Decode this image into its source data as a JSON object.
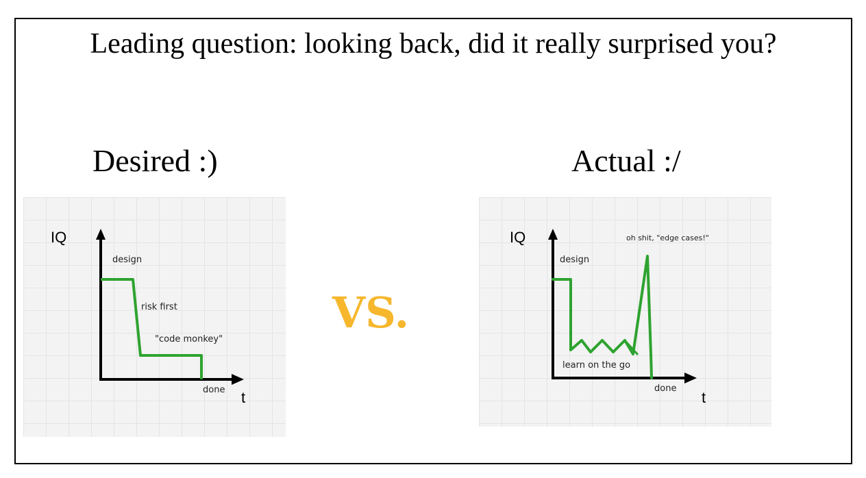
{
  "title": "Leading question: looking back, did it really surprised you?",
  "vs_label": "VS.",
  "vs_color": "#f6b72d",
  "line_color": "#2ea330",
  "desired": {
    "heading": "Desired :)",
    "y_axis": "IQ",
    "x_axis": "t",
    "labels": {
      "design": "design",
      "risk": "risk first",
      "monkey": "\"code monkey\"",
      "done": "done"
    }
  },
  "actual": {
    "heading": "Actual :/",
    "y_axis": "IQ",
    "x_axis": "t",
    "labels": {
      "design": "design",
      "edge": "oh shit, \"edge cases!\"",
      "learn": "learn on the go",
      "done": "done"
    }
  }
}
